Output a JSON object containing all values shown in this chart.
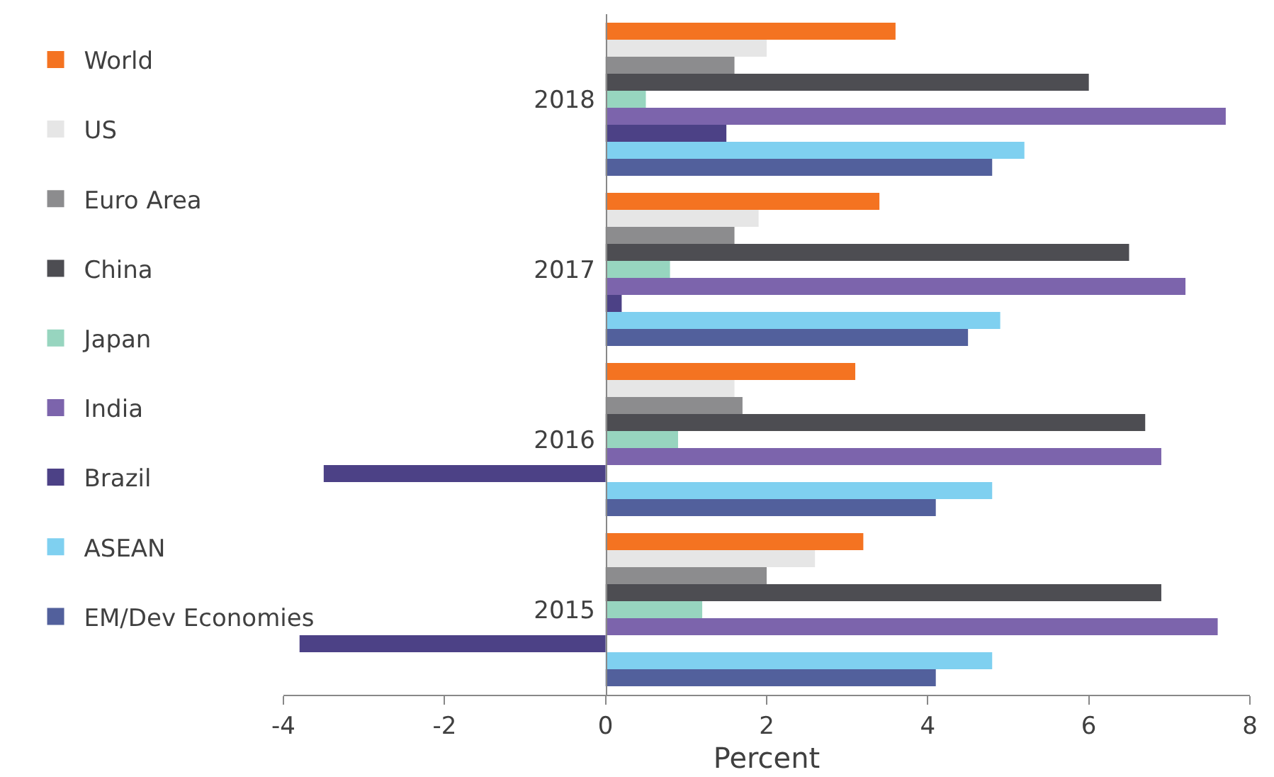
{
  "chart_data": {
    "type": "bar",
    "orientation": "horizontal",
    "xlabel": "Percent",
    "categories": [
      "2018",
      "2017",
      "2016",
      "2015"
    ],
    "series": [
      {
        "name": "World",
        "color": "#f47321",
        "values": [
          3.6,
          3.4,
          3.1,
          3.2
        ]
      },
      {
        "name": "US",
        "color": "#e6e6e6",
        "values": [
          2.0,
          1.9,
          1.6,
          2.6
        ]
      },
      {
        "name": "Euro Area",
        "color": "#8c8c8e",
        "values": [
          1.6,
          1.6,
          1.7,
          2.0
        ]
      },
      {
        "name": "China",
        "color": "#4d4d52",
        "values": [
          6.0,
          6.5,
          6.7,
          6.9
        ]
      },
      {
        "name": "Japan",
        "color": "#97d5bf",
        "values": [
          0.5,
          0.8,
          0.9,
          1.2
        ]
      },
      {
        "name": "India",
        "color": "#7c64ac",
        "values": [
          7.7,
          7.2,
          6.9,
          7.6
        ]
      },
      {
        "name": "Brazil",
        "color": "#4c4186",
        "values": [
          1.5,
          0.2,
          -3.5,
          -3.8
        ]
      },
      {
        "name": "ASEAN",
        "color": "#7fd0f0",
        "values": [
          5.2,
          4.9,
          4.8,
          4.8
        ]
      },
      {
        "name": "EM/Dev Economies",
        "color": "#52609c",
        "values": [
          4.8,
          4.5,
          4.1,
          4.1
        ]
      }
    ],
    "xlim": [
      -4,
      8
    ],
    "xticks": [
      -4,
      -2,
      0,
      2,
      4,
      6,
      8
    ],
    "grid": false,
    "legend": "left"
  }
}
